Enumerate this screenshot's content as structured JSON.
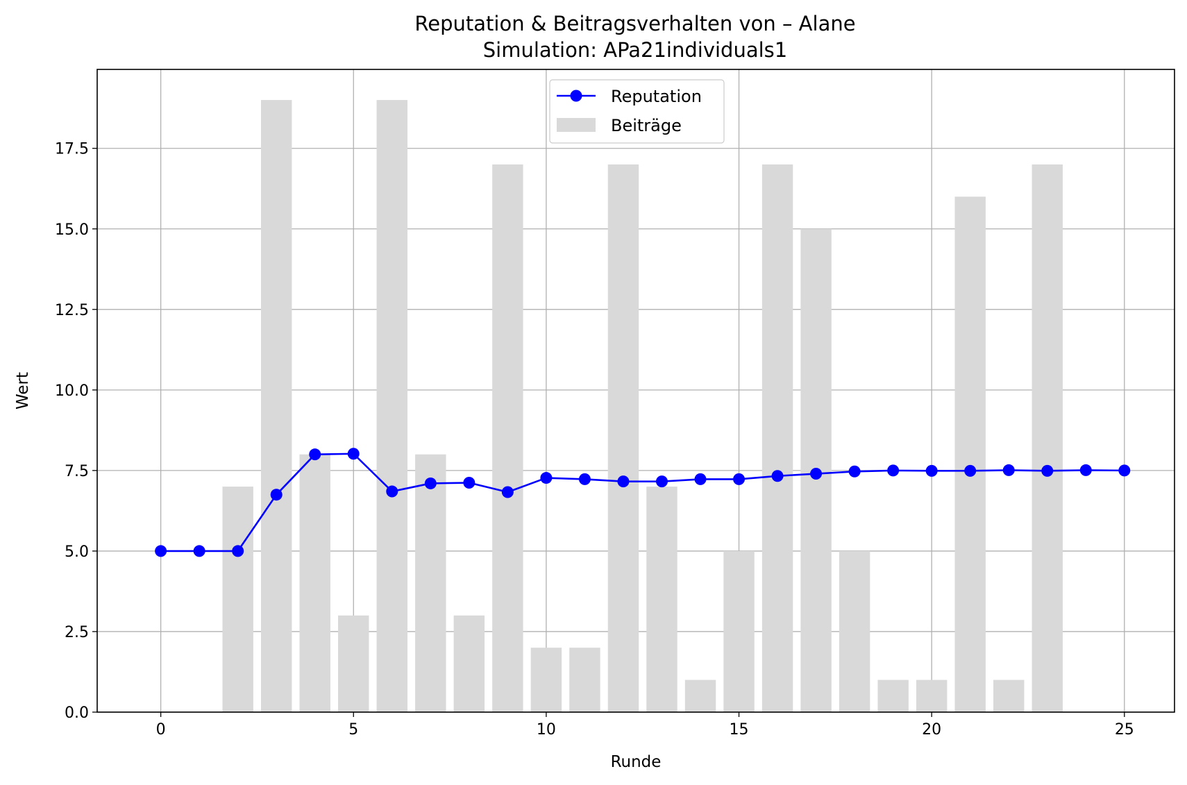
{
  "chart_data": {
    "type": "bar+line",
    "title": "Reputation & Beitragsverhalten von – Alane",
    "subtitle": "Simulation: APa21individuals1",
    "xlabel": "Runde",
    "ylabel": "Wert",
    "xlim": [
      -1.65,
      26.3
    ],
    "ylim": [
      0,
      19.95
    ],
    "xticks": [
      0,
      5,
      10,
      15,
      20,
      25
    ],
    "yticks": [
      0.0,
      2.5,
      5.0,
      7.5,
      10.0,
      12.5,
      15.0,
      17.5
    ],
    "xtick_labels": [
      "0",
      "5",
      "10",
      "15",
      "20",
      "25"
    ],
    "ytick_labels": [
      "0.0",
      "2.5",
      "5.0",
      "7.5",
      "10.0",
      "12.5",
      "15.0",
      "17.5"
    ],
    "grid": true,
    "legend_position": "top-center",
    "x": [
      0,
      1,
      2,
      3,
      4,
      5,
      6,
      7,
      8,
      9,
      10,
      11,
      12,
      13,
      14,
      15,
      16,
      17,
      18,
      19,
      20,
      21,
      22,
      23,
      24,
      25
    ],
    "series": [
      {
        "name": "Reputation",
        "kind": "line",
        "marker": "circle",
        "color": "#0000ff",
        "values": [
          5.0,
          5.0,
          5.0,
          6.75,
          8.0,
          8.02,
          6.85,
          7.1,
          7.12,
          6.83,
          7.27,
          7.23,
          7.16,
          7.16,
          7.23,
          7.23,
          7.33,
          7.4,
          7.47,
          7.5,
          7.49,
          7.49,
          7.51,
          7.49,
          7.51,
          7.5
        ]
      },
      {
        "name": "Beiträge",
        "kind": "bar",
        "color": "#d9d9d9",
        "values": [
          0,
          0,
          7,
          19,
          8,
          3,
          19,
          8,
          3,
          17,
          2,
          2,
          17,
          7,
          1,
          5,
          17,
          15,
          5,
          1,
          1,
          16,
          1,
          17,
          0,
          0
        ]
      }
    ]
  }
}
